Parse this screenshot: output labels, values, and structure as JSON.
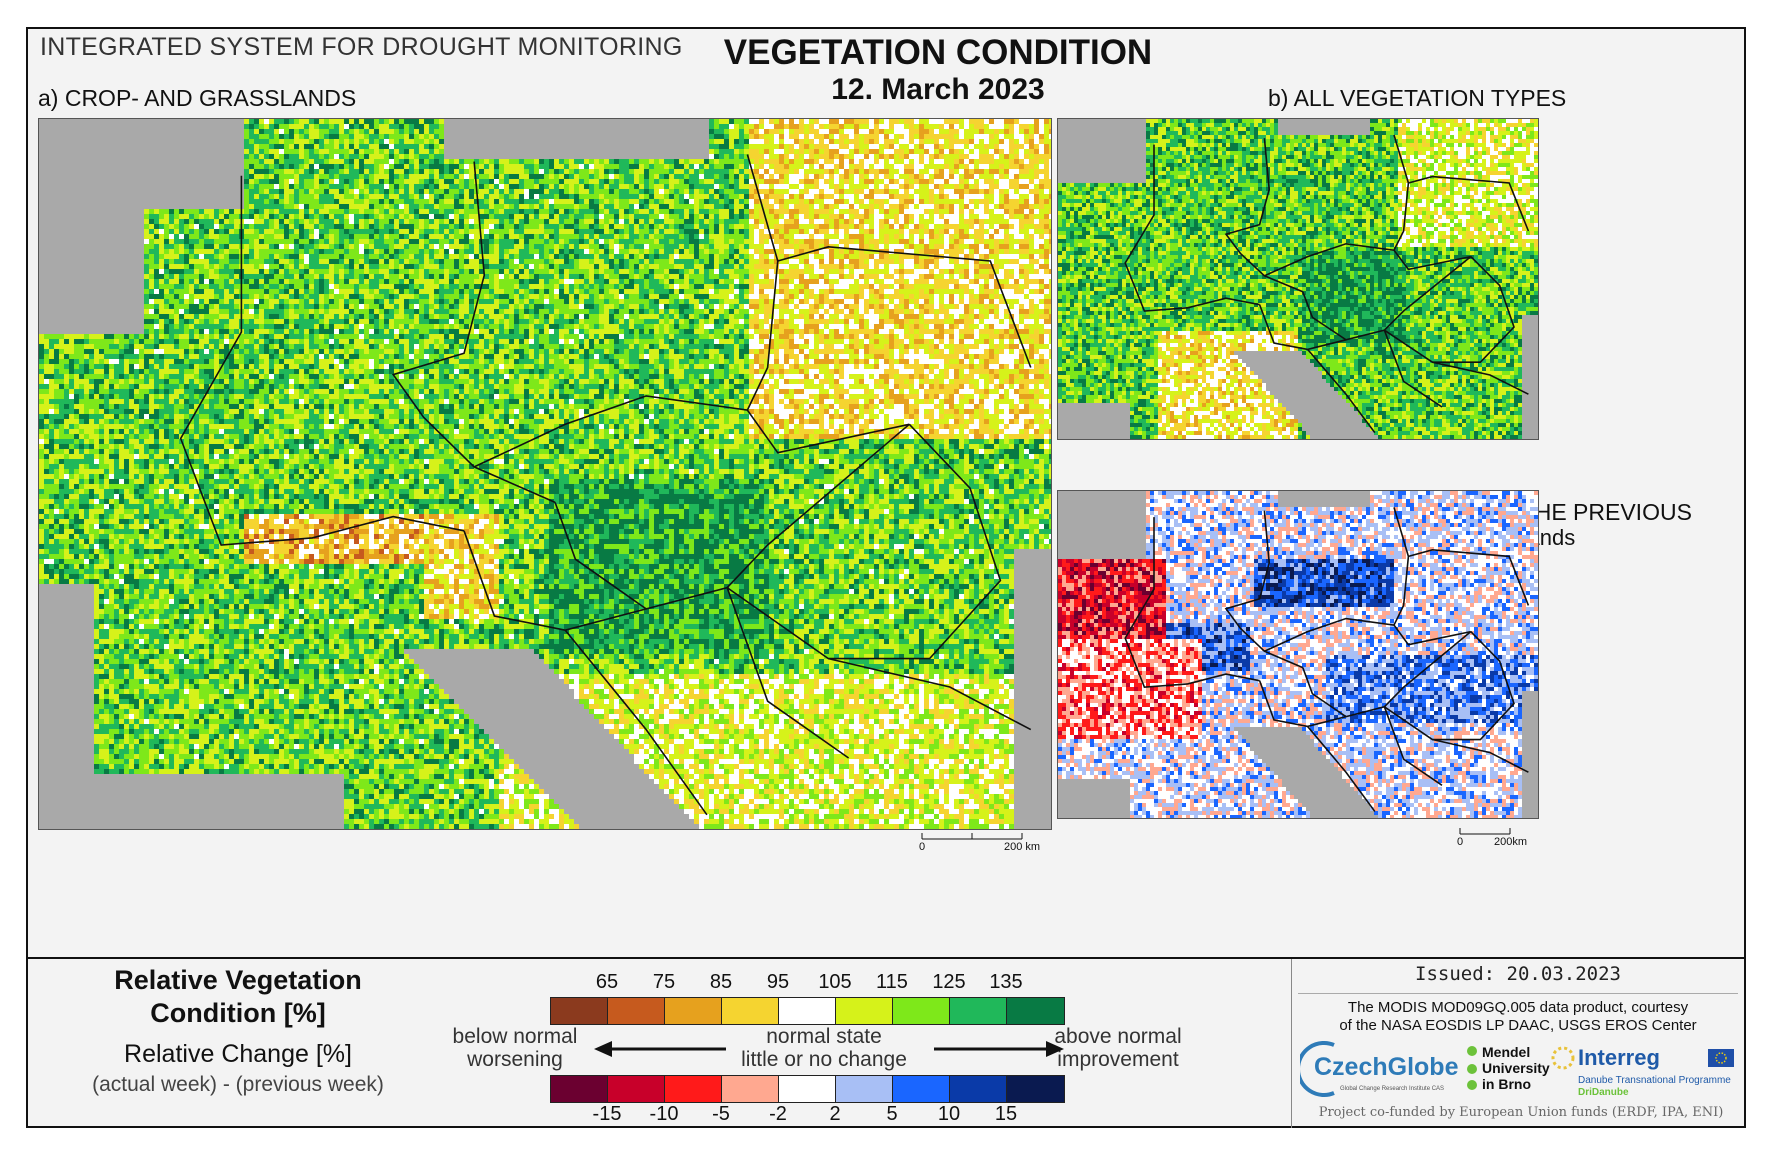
{
  "header": {
    "system_name": "INTEGRATED SYSTEM FOR DROUGHT MONITORING",
    "title": "VEGETATION CONDITION",
    "date": "12. March 2023"
  },
  "panels": {
    "a_label": "a) CROP- AND GRASSLANDS",
    "b_label": "b) ALL VEGETATION TYPES",
    "c_label": "c) CHANGE COMPARED WITH THE PREVIOUS WEEK",
    "c_sublabel": "for crop- and grasslands",
    "scale_zero": "0",
    "scale_a": "200 km",
    "scale_c": "200km"
  },
  "legend": {
    "rvc_title_line1": "Relative Vegetation",
    "rvc_title_line2": "Condition [%]",
    "rc_title": "Relative Change [%]",
    "rc_subtitle": "(actual week) - (previous week)",
    "rvc_colors": [
      "#8b3a1e",
      "#c65a1e",
      "#e6a11e",
      "#f5d430",
      "#ffffff",
      "#d6f21a",
      "#7ee81a",
      "#20b85a",
      "#087a44"
    ],
    "rvc_ticks": [
      "65",
      "75",
      "85",
      "95",
      "105",
      "115",
      "125",
      "135"
    ],
    "rc_colors": [
      "#6b0030",
      "#c8002a",
      "#ff1a1a",
      "#ffa890",
      "#ffffff",
      "#a8bff5",
      "#1a66ff",
      "#0a3aa8",
      "#0a1a50"
    ],
    "rc_ticks": [
      "-15",
      "-10",
      "-5",
      "-2",
      "2",
      "5",
      "10",
      "15"
    ],
    "left_line1": "below normal",
    "left_line2": "worsening",
    "mid_line1": "normal state",
    "mid_line2": "little or no change",
    "right_line1": "above normal",
    "right_line2": "improvement"
  },
  "credits": {
    "issued": "Issued: 20.03.2023",
    "line1": "The MODIS MOD09GQ.005 data product, courtesy",
    "line2": "of the NASA EOSDIS LP DAAC, USGS EROS Center",
    "czechglobe": "CzechGlobe",
    "czechglobe_sub": "Global Change Research Institute CAS",
    "mendel": "Mendel University in Brno",
    "interreg": "Interreg",
    "interreg_sub": "Danube Transnational Programme",
    "dridanube": "DriDanube",
    "funding": "Project co-funded by European Union funds (ERDF, IPA, ENI)"
  }
}
